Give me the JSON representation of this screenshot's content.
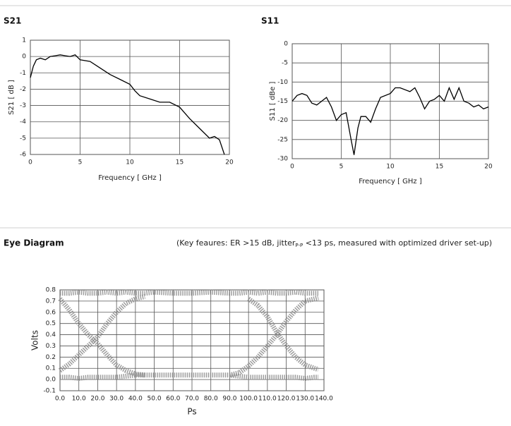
{
  "chart_data": [
    {
      "type": "line",
      "title": "S21",
      "xlabel": "Frequency [ GHz ]",
      "ylabel": "S21 [ dB ]",
      "xlim": [
        0,
        20
      ],
      "ylim": [
        -6,
        1
      ],
      "xticks": [
        0,
        5,
        10,
        15,
        20
      ],
      "yticks": [
        1,
        0,
        -1,
        -2,
        -3,
        -4,
        -5,
        -6
      ],
      "grid": true,
      "x": [
        0,
        0.3,
        0.6,
        1,
        1.5,
        2,
        2.5,
        3,
        3.5,
        4,
        4.5,
        5,
        6,
        7,
        8,
        9,
        10,
        10.5,
        11,
        12,
        13,
        14,
        15,
        16,
        17,
        18,
        18.5,
        19,
        19.5
      ],
      "series": [
        {
          "color": "#000000",
          "values": [
            -1.3,
            -0.6,
            -0.2,
            -0.1,
            -0.2,
            0,
            0.05,
            0.1,
            0.05,
            0,
            0.1,
            -0.2,
            -0.3,
            -0.7,
            -1.1,
            -1.4,
            -1.7,
            -2.1,
            -2.4,
            -2.6,
            -2.8,
            -2.8,
            -3.1,
            -3.8,
            -4.4,
            -5,
            -4.9,
            -5.1,
            -6
          ]
        }
      ]
    },
    {
      "type": "line",
      "title": "S11",
      "xlabel": "Frequency [ GHz ]",
      "ylabel": "S11 [ dBe ]",
      "xlim": [
        0,
        20
      ],
      "ylim": [
        -30,
        0
      ],
      "xticks": [
        0,
        5,
        10,
        15,
        20
      ],
      "yticks": [
        0,
        -5,
        -10,
        -15,
        -20,
        -25,
        -30
      ],
      "grid": true,
      "x": [
        0,
        0.5,
        1,
        1.5,
        2,
        2.5,
        3,
        3.5,
        4,
        4.5,
        5,
        5.5,
        6,
        6.3,
        6.7,
        7,
        7.5,
        8,
        8.5,
        9,
        10,
        10.5,
        11,
        12,
        12.5,
        13,
        13.5,
        14,
        14.5,
        15,
        15.5,
        16,
        16.5,
        17,
        17.5,
        18,
        18.5,
        19,
        19.5,
        20
      ],
      "series": [
        {
          "color": "#000000",
          "values": [
            -15,
            -13.5,
            -13,
            -13.5,
            -15.5,
            -16,
            -15,
            -14,
            -16.5,
            -20,
            -18.5,
            -18,
            -25,
            -29,
            -22,
            -19,
            -19,
            -20.5,
            -17,
            -14,
            -13,
            -11.5,
            -11.5,
            -12.5,
            -11.5,
            -14,
            -17,
            -15,
            -14.5,
            -13.5,
            -15,
            -11.5,
            -14.5,
            -11.5,
            -15,
            -15.5,
            -16.5,
            -16,
            -17,
            -16.5
          ]
        }
      ]
    },
    {
      "type": "eye",
      "title": "Eye Diagram",
      "note": [
        "(Key feaures: ER >15 dB, jitter",
        "P-P",
        " <13 ps, measured with optimized driver set-up)"
      ],
      "xlabel": "Ps",
      "ylabel": "Volts",
      "xlim": [
        0,
        140
      ],
      "ylim": [
        -0.1,
        0.8
      ],
      "grid": true,
      "xticks": [
        {
          "value": 0,
          "label": "0.0"
        },
        {
          "value": 10,
          "label": "10.0"
        },
        {
          "value": 20,
          "label": "20.0"
        },
        {
          "value": 30,
          "label": "30.0"
        },
        {
          "value": 40,
          "label": "40.0"
        },
        {
          "value": 50,
          "label": "50.0"
        },
        {
          "value": 60,
          "label": "60.0"
        },
        {
          "value": 70,
          "label": "70.0"
        },
        {
          "value": 80,
          "label": "80.0"
        },
        {
          "value": 90,
          "label": "90.0"
        },
        {
          "value": 100,
          "label": "100.0"
        },
        {
          "value": 110,
          "label": "110.0"
        },
        {
          "value": 120,
          "label": "120.0"
        },
        {
          "value": 130,
          "label": "130.0"
        },
        {
          "value": 140,
          "label": "140.0"
        }
      ],
      "yticks": [
        0.8,
        0.7,
        0.6,
        0.5,
        0.4,
        0.3,
        0.2,
        0.1,
        {
          "value": 0,
          "label": "0.0"
        },
        -0.1
      ],
      "x": [
        0,
        5,
        10,
        15,
        20,
        25,
        30,
        35,
        40,
        45,
        50,
        60,
        70,
        80,
        90,
        95,
        100,
        105,
        110,
        115,
        120,
        125,
        130,
        135,
        137
      ],
      "series": [
        {
          "color": "#8c8c8c",
          "values": [
            0.77,
            0.77,
            0.78,
            0.77,
            0.77,
            0.78,
            0.77,
            0.78,
            0.77,
            0.77,
            0.78,
            0.77,
            0.77,
            0.78,
            0.77,
            0.77,
            0.78,
            0.77,
            0.78,
            0.77,
            0.77,
            0.78,
            0.77,
            0.77,
            0.77
          ]
        },
        {
          "color": "#8c8c8c",
          "values": [
            0.02,
            0.02,
            0.01,
            0.02,
            0.02,
            0.02,
            0.02,
            0.03,
            0.04,
            0.04,
            0.04,
            0.04,
            0.04,
            0.04,
            0.04,
            0.03,
            0.02,
            0.02,
            0.02,
            0.02,
            0.02,
            0.02,
            0.01,
            0.02,
            0.02
          ]
        },
        {
          "color": "#8c8c8c",
          "values": [
            0.72,
            0.62,
            0.5,
            0.4,
            0.32,
            0.22,
            0.13,
            0.08,
            0.05,
            0.04,
            null,
            null,
            null,
            null,
            null,
            null,
            0.72,
            0.66,
            0.56,
            0.42,
            0.3,
            0.2,
            0.13,
            0.1,
            0.09
          ]
        },
        {
          "color": "#8c8c8c",
          "values": [
            0.08,
            0.14,
            0.22,
            0.3,
            0.38,
            0.5,
            0.6,
            0.68,
            0.72,
            0.74,
            null,
            null,
            null,
            null,
            0.04,
            0.06,
            0.12,
            0.2,
            0.3,
            0.4,
            0.52,
            0.62,
            0.7,
            0.72,
            0.73
          ]
        }
      ]
    }
  ]
}
